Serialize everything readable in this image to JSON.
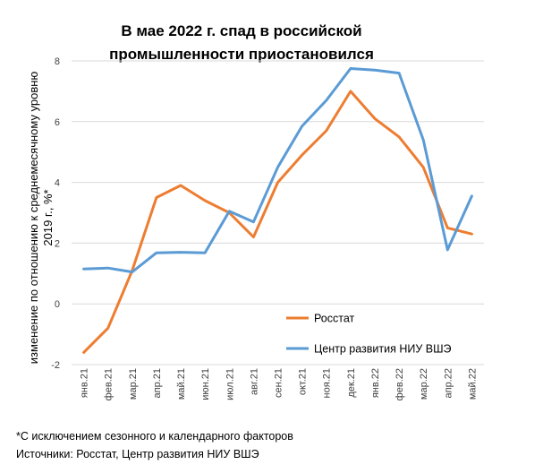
{
  "chart_data": {
    "type": "line",
    "title_line1": "В мае 2022 г. спад в российской",
    "title_line2": "промышленности  приостановился",
    "ylabel_line1": "изменение по отношению к среднемесячному уровню",
    "ylabel_line2": "2019 г., %*",
    "xlabel": "",
    "ylim": [
      -2,
      8
    ],
    "yticks": [
      "-2",
      "0",
      "2",
      "4",
      "6",
      "8"
    ],
    "ytick_values": [
      -2,
      0,
      2,
      4,
      6,
      8
    ],
    "grid": true,
    "legend_position": "bottom-right",
    "categories": [
      "янв.21",
      "фев.21",
      "мар.21",
      "апр.21",
      "май.21",
      "июн.21",
      "июл.21",
      "авг.21",
      "сен.21",
      "окт.21",
      "ноя.21",
      "дек.21",
      "янв.22",
      "фев.22",
      "мар.22",
      "апр.22",
      "май.22"
    ],
    "series": [
      {
        "name": "Росстат",
        "color": "#ED7D31",
        "values": [
          -1.6,
          -0.8,
          1.1,
          3.5,
          3.9,
          3.4,
          3.0,
          2.2,
          4.0,
          4.9,
          5.7,
          7.0,
          6.1,
          5.5,
          4.5,
          2.5,
          2.3
        ]
      },
      {
        "name": "Центр развития НИУ ВШЭ",
        "color": "#5B9BD5",
        "values": [
          1.15,
          1.18,
          1.05,
          1.68,
          1.7,
          1.68,
          3.05,
          2.7,
          4.5,
          5.85,
          6.7,
          7.75,
          7.7,
          7.6,
          5.4,
          1.78,
          3.55
        ]
      }
    ]
  },
  "footnote": "*С исключением сезонного и календарного факторов",
  "sources": "Источники: Росстат, Центр развития НИУ ВШЭ"
}
